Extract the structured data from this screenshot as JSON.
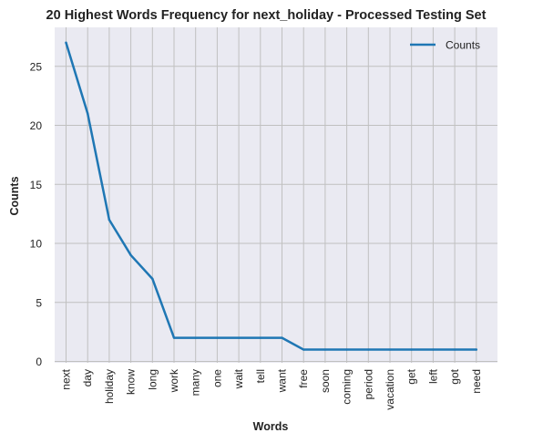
{
  "chart_data": {
    "type": "line",
    "title": "20 Highest Words Frequency for next_holiday - Processed Testing Set",
    "xlabel": "Words",
    "ylabel": "Counts",
    "categories": [
      "next",
      "day",
      "holiday",
      "know",
      "long",
      "work",
      "many",
      "one",
      "wait",
      "tell",
      "want",
      "free",
      "soon",
      "coming",
      "period",
      "vacation",
      "get",
      "left",
      "got",
      "need"
    ],
    "series": [
      {
        "name": "Counts",
        "values": [
          27,
          21,
          12,
          9,
          7,
          2,
          2,
          2,
          2,
          2,
          2,
          1,
          1,
          1,
          1,
          1,
          1,
          1,
          1,
          1
        ]
      }
    ],
    "ylim": [
      0,
      28
    ],
    "yticks": [
      "0",
      "5",
      "10",
      "15",
      "20",
      "25"
    ],
    "grid": true,
    "legend": "top-right",
    "colors": {
      "line": "#1f77b4",
      "background": "#eaeaf2",
      "grid": "#c0c0c0"
    }
  }
}
